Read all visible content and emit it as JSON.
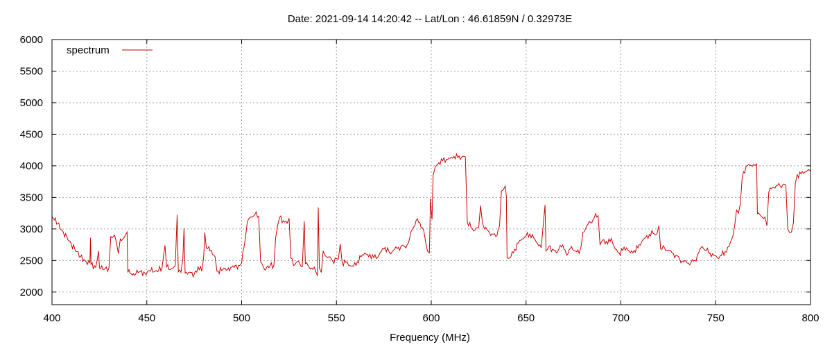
{
  "chart_data": {
    "type": "line",
    "title": "Date: 2021-09-14 14:20:42  --  Lat/Lon : 46.61859N / 0.32973E",
    "xlabel": "Frequency (MHz)",
    "ylabel": "",
    "xlim": [
      400,
      800
    ],
    "ylim": [
      1800,
      6000
    ],
    "x_ticks": [
      400,
      450,
      500,
      550,
      600,
      650,
      700,
      750,
      800
    ],
    "y_ticks": [
      2000,
      2500,
      3000,
      3500,
      4000,
      4500,
      5000,
      5500,
      6000
    ],
    "grid": true,
    "legend_position": "top-left",
    "series": [
      {
        "name": "spectrum",
        "color": "#cc0000",
        "points": [
          [
            400,
            3200
          ],
          [
            403,
            3080
          ],
          [
            406,
            2950
          ],
          [
            409,
            2810
          ],
          [
            412,
            2680
          ],
          [
            415,
            2560
          ],
          [
            418,
            2480
          ],
          [
            420,
            2460
          ],
          [
            420.3,
            2860
          ],
          [
            420.6,
            2440
          ],
          [
            423,
            2390
          ],
          [
            424.6,
            2650
          ],
          [
            425,
            2380
          ],
          [
            428,
            2370
          ],
          [
            430,
            2380
          ],
          [
            431,
            2880
          ],
          [
            433,
            2900
          ],
          [
            434,
            2780
          ],
          [
            435,
            2610
          ],
          [
            436,
            2840
          ],
          [
            438,
            2860
          ],
          [
            439.6,
            2950
          ],
          [
            440,
            2310
          ],
          [
            443,
            2290
          ],
          [
            446,
            2320
          ],
          [
            449,
            2300
          ],
          [
            452,
            2330
          ],
          [
            455,
            2340
          ],
          [
            458,
            2370
          ],
          [
            459.6,
            2740
          ],
          [
            460.4,
            2390
          ],
          [
            463,
            2370
          ],
          [
            465,
            2420
          ],
          [
            466,
            3220
          ],
          [
            466.6,
            2320
          ],
          [
            468,
            2310
          ],
          [
            469,
            2520
          ],
          [
            469.6,
            3010
          ],
          [
            470.2,
            2300
          ],
          [
            472,
            2310
          ],
          [
            475,
            2280
          ],
          [
            477,
            2400
          ],
          [
            479,
            2330
          ],
          [
            480,
            2560
          ],
          [
            480.6,
            2940
          ],
          [
            481.4,
            2700
          ],
          [
            484,
            2660
          ],
          [
            486,
            2560
          ],
          [
            487,
            2330
          ],
          [
            490,
            2350
          ],
          [
            493,
            2380
          ],
          [
            496,
            2390
          ],
          [
            499,
            2420
          ],
          [
            500,
            2460
          ],
          [
            502,
            2860
          ],
          [
            503,
            3110
          ],
          [
            505,
            3190
          ],
          [
            507,
            3230
          ],
          [
            509,
            3200
          ],
          [
            510,
            2480
          ],
          [
            512,
            2360
          ],
          [
            515,
            2410
          ],
          [
            517,
            2420
          ],
          [
            518,
            2870
          ],
          [
            519,
            3060
          ],
          [
            520,
            3180
          ],
          [
            522,
            3130
          ],
          [
            524,
            3090
          ],
          [
            525,
            3170
          ],
          [
            526,
            2540
          ],
          [
            528,
            2430
          ],
          [
            530,
            2490
          ],
          [
            532,
            2400
          ],
          [
            533,
            3120
          ],
          [
            533.6,
            2450
          ],
          [
            535,
            2420
          ],
          [
            537,
            2380
          ],
          [
            539,
            2330
          ],
          [
            540,
            2260
          ],
          [
            540.4,
            3340
          ],
          [
            541,
            2380
          ],
          [
            542,
            2310
          ],
          [
            543,
            2650
          ],
          [
            544,
            2580
          ],
          [
            546,
            2560
          ],
          [
            548,
            2490
          ],
          [
            550,
            2530
          ],
          [
            551,
            2520
          ],
          [
            552,
            2760
          ],
          [
            553,
            2470
          ],
          [
            555,
            2470
          ],
          [
            557,
            2420
          ],
          [
            559,
            2410
          ],
          [
            561,
            2480
          ],
          [
            563,
            2560
          ],
          [
            565,
            2620
          ],
          [
            567,
            2560
          ],
          [
            569,
            2590
          ],
          [
            571,
            2530
          ],
          [
            573,
            2620
          ],
          [
            575,
            2680
          ],
          [
            577,
            2700
          ],
          [
            578,
            2620
          ],
          [
            580,
            2660
          ],
          [
            582,
            2690
          ],
          [
            584,
            2720
          ],
          [
            586,
            2720
          ],
          [
            588,
            2780
          ],
          [
            590,
            2990
          ],
          [
            592,
            3130
          ],
          [
            594,
            3100
          ],
          [
            596,
            2980
          ],
          [
            597,
            2800
          ],
          [
            598,
            2650
          ],
          [
            599,
            2620
          ],
          [
            599.6,
            3480
          ],
          [
            600,
            3300
          ],
          [
            600.4,
            3150
          ],
          [
            601,
            3850
          ],
          [
            602,
            3970
          ],
          [
            604,
            4050
          ],
          [
            606,
            4080
          ],
          [
            608,
            4100
          ],
          [
            610,
            4120
          ],
          [
            612,
            4150
          ],
          [
            614,
            4130
          ],
          [
            616,
            4140
          ],
          [
            618,
            4140
          ],
          [
            619,
            3100
          ],
          [
            621,
            3020
          ],
          [
            623,
            2980
          ],
          [
            625,
            3020
          ],
          [
            626,
            3370
          ],
          [
            627,
            3100
          ],
          [
            628,
            3000
          ],
          [
            630,
            2970
          ],
          [
            632,
            2920
          ],
          [
            634,
            2880
          ],
          [
            636,
            3050
          ],
          [
            637,
            3600
          ],
          [
            638,
            3620
          ],
          [
            639,
            3680
          ],
          [
            639.6,
            3520
          ],
          [
            640,
            2540
          ],
          [
            642,
            2560
          ],
          [
            644,
            2680
          ],
          [
            646,
            2780
          ],
          [
            648,
            2840
          ],
          [
            650,
            2890
          ],
          [
            652,
            2920
          ],
          [
            654,
            2860
          ],
          [
            656,
            2770
          ],
          [
            658,
            2700
          ],
          [
            659,
            3050
          ],
          [
            660,
            3380
          ],
          [
            660.5,
            2650
          ],
          [
            662,
            2720
          ],
          [
            664,
            2680
          ],
          [
            666,
            2620
          ],
          [
            668,
            2740
          ],
          [
            670,
            2680
          ],
          [
            672,
            2600
          ],
          [
            674,
            2720
          ],
          [
            676,
            2650
          ],
          [
            678,
            2610
          ],
          [
            679,
            2720
          ],
          [
            680,
            2950
          ],
          [
            682,
            3050
          ],
          [
            684,
            3100
          ],
          [
            686,
            3180
          ],
          [
            688,
            3210
          ],
          [
            689,
            2750
          ],
          [
            691,
            2830
          ],
          [
            693,
            2760
          ],
          [
            695,
            2850
          ],
          [
            697,
            2680
          ],
          [
            699,
            2620
          ],
          [
            701,
            2660
          ],
          [
            703,
            2700
          ],
          [
            705,
            2620
          ],
          [
            707,
            2660
          ],
          [
            709,
            2700
          ],
          [
            711,
            2800
          ],
          [
            713,
            2860
          ],
          [
            715,
            2910
          ],
          [
            717,
            2930
          ],
          [
            719,
            2920
          ],
          [
            720,
            3050
          ],
          [
            721,
            2680
          ],
          [
            723,
            2700
          ],
          [
            725,
            2650
          ],
          [
            727,
            2620
          ],
          [
            729,
            2580
          ],
          [
            731,
            2520
          ],
          [
            733,
            2480
          ],
          [
            735,
            2460
          ],
          [
            737,
            2470
          ],
          [
            739,
            2500
          ],
          [
            741,
            2620
          ],
          [
            743,
            2720
          ],
          [
            745,
            2660
          ],
          [
            747,
            2620
          ],
          [
            749,
            2580
          ],
          [
            751,
            2540
          ],
          [
            753,
            2580
          ],
          [
            755,
            2640
          ],
          [
            757,
            2720
          ],
          [
            759,
            2880
          ],
          [
            760,
            3050
          ],
          [
            761,
            3300
          ],
          [
            762,
            3250
          ],
          [
            763,
            3400
          ],
          [
            764,
            3820
          ],
          [
            766,
            3990
          ],
          [
            768,
            4010
          ],
          [
            770,
            4020
          ],
          [
            771.6,
            4030
          ],
          [
            772,
            3240
          ],
          [
            774,
            3200
          ],
          [
            776,
            3190
          ],
          [
            777,
            3050
          ],
          [
            778,
            3580
          ],
          [
            780,
            3660
          ],
          [
            782,
            3690
          ],
          [
            784,
            3680
          ],
          [
            786,
            3710
          ],
          [
            787,
            3700
          ],
          [
            788,
            3000
          ],
          [
            789,
            2940
          ],
          [
            790,
            2950
          ],
          [
            791,
            3100
          ],
          [
            792,
            3720
          ],
          [
            793,
            3860
          ],
          [
            795,
            3870
          ],
          [
            797,
            3900
          ],
          [
            799,
            3940
          ],
          [
            800,
            3920
          ]
        ]
      }
    ]
  }
}
